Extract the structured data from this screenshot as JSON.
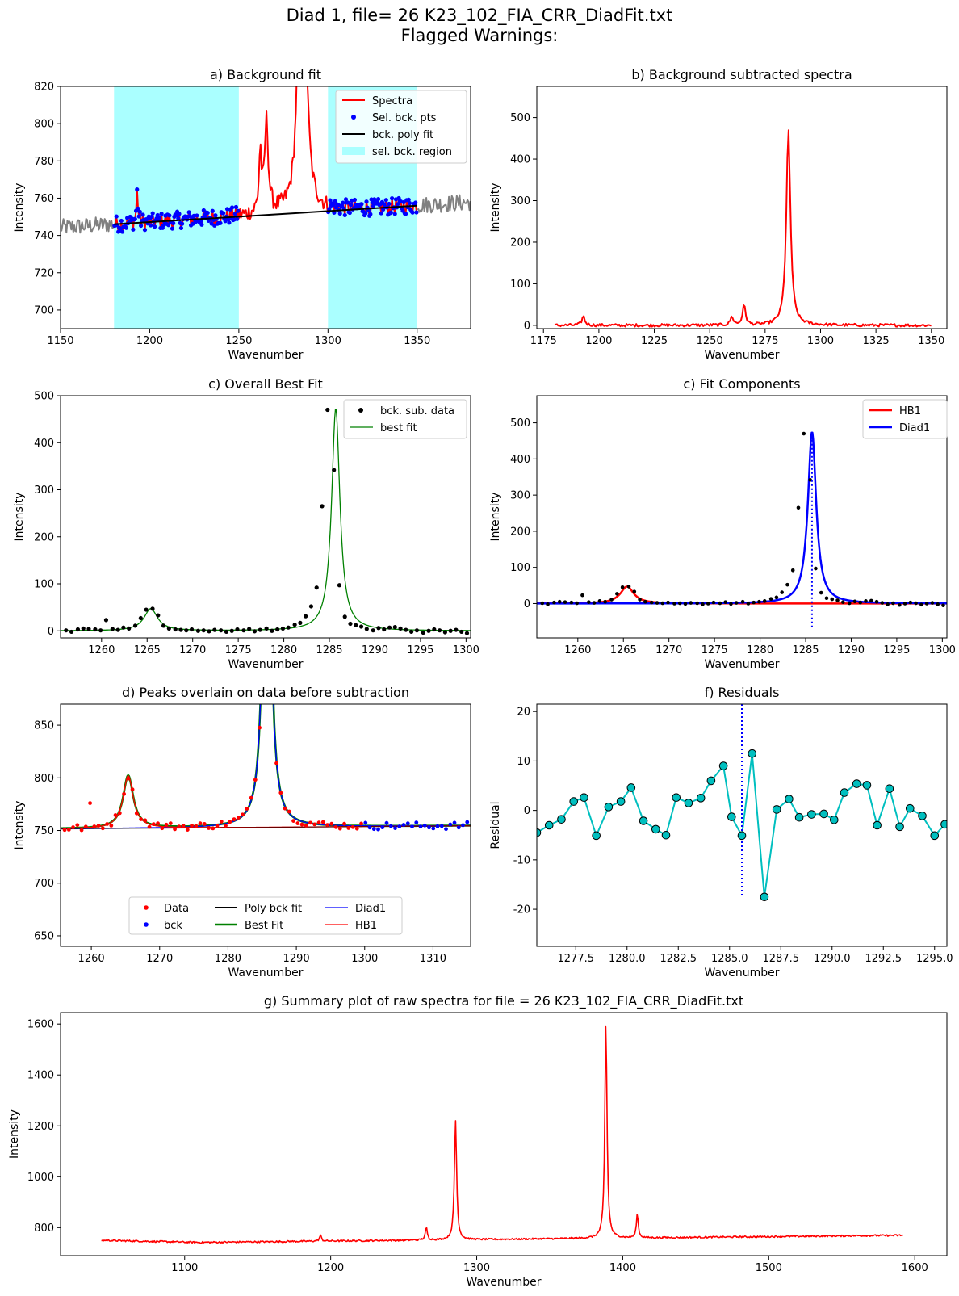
{
  "figure": {
    "suptitle_line1": "Diad 1, file= 26 K23_102_FIA_CRR_DiadFit.txt",
    "suptitle_line2": "Flagged Warnings:"
  },
  "chart_data": [
    {
      "id": "a",
      "type": "line",
      "title": "a) Background fit",
      "xlabel": "Wavenumber",
      "ylabel": "Intensity",
      "xlim": [
        1150,
        1380
      ],
      "ylim": [
        690,
        820
      ],
      "xticks": [
        1150,
        1200,
        1250,
        1300,
        1350
      ],
      "yticks": [
        700,
        720,
        740,
        760,
        780,
        800,
        820
      ],
      "legend": {
        "position": "top-right",
        "entries": [
          "Spectra",
          "Sel. bck. pts",
          "bck. poly fit",
          "sel. bck. region"
        ]
      },
      "colors": {
        "spectra": "#ff0000",
        "sel_pts": "#0000ff",
        "poly_fit": "#000000",
        "region": "#aaffff",
        "outside": "#808080"
      },
      "bck_regions": [
        [
          1180,
          1250
        ],
        [
          1300,
          1350
        ]
      ],
      "poly_fit": {
        "x": [
          1180,
          1350
        ],
        "y": [
          746,
          756
        ]
      },
      "peaks": [
        {
          "x": 1193,
          "height": 769,
          "width": 0.5
        },
        {
          "x": 1262,
          "height": 784,
          "width": 0.8
        },
        {
          "x": 1265.5,
          "height": 801,
          "width": 1.2
        },
        {
          "x": 1285.5,
          "height": 1210,
          "width": 1.3
        }
      ]
    },
    {
      "id": "b",
      "type": "line",
      "title": "b) Background subtracted spectra",
      "xlabel": "Wavenumber",
      "ylabel": "Intensity",
      "xlim": [
        1172,
        1357
      ],
      "ylim": [
        -8,
        575
      ],
      "xticks": [
        1175,
        1200,
        1225,
        1250,
        1275,
        1300,
        1325,
        1350
      ],
      "yticks": [
        0,
        100,
        200,
        300,
        400,
        500
      ],
      "x_range": [
        1180,
        1350
      ],
      "peaks": [
        {
          "x": 1193,
          "height": 22
        },
        {
          "x": 1260,
          "height": 20
        },
        {
          "x": 1265.5,
          "height": 48
        },
        {
          "x": 1285.5,
          "height": 470
        }
      ],
      "color": "#ff0000"
    },
    {
      "id": "c1",
      "type": "scatter",
      "title": "c) Overall Best Fit",
      "xlabel": "Wavenumber",
      "ylabel": "Intensity",
      "xlim": [
        1255.5,
        1300.5
      ],
      "ylim": [
        -15,
        500
      ],
      "xticks": [
        1260,
        1265,
        1270,
        1275,
        1280,
        1285,
        1290,
        1295,
        1300
      ],
      "yticks": [
        0,
        100,
        200,
        300,
        400,
        500
      ],
      "legend": {
        "position": "top-right",
        "entries": [
          "bck. sub. data",
          "best fit"
        ]
      },
      "colors": {
        "data": "#000000",
        "fit": "#008000"
      },
      "data_x": [
        1256.1,
        1256.7,
        1257.4,
        1258.0,
        1258.6,
        1259.3,
        1259.9,
        1260.5,
        1261.2,
        1261.8,
        1262.4,
        1263.0,
        1263.7,
        1264.3,
        1264.9,
        1265.6,
        1266.2,
        1266.8,
        1267.4,
        1268.1,
        1268.7,
        1269.3,
        1269.9,
        1270.6,
        1271.2,
        1271.8,
        1272.4,
        1273.1,
        1273.7,
        1274.3,
        1274.9,
        1275.6,
        1276.2,
        1276.8,
        1277.4,
        1278.1,
        1278.7,
        1279.3,
        1279.9,
        1280.5,
        1281.2,
        1281.8,
        1282.4,
        1283.0,
        1283.6,
        1284.2,
        1284.8,
        1285.5,
        1286.1,
        1286.7,
        1287.3,
        1287.9,
        1288.5,
        1289.1,
        1289.8,
        1290.4,
        1291.0,
        1291.6,
        1292.2,
        1292.8,
        1293.4,
        1294.0,
        1294.6,
        1295.3,
        1295.9,
        1296.5,
        1297.1,
        1297.7,
        1298.3,
        1298.9,
        1299.5,
        1300.1
      ],
      "data_y": [
        1,
        -2,
        3,
        5,
        4,
        3,
        1,
        23,
        4,
        2,
        7,
        5,
        11,
        27,
        45,
        47,
        33,
        11,
        5,
        3,
        2,
        1,
        3,
        0,
        1,
        -1,
        2,
        1,
        -2,
        0,
        3,
        1,
        4,
        -1,
        2,
        5,
        0,
        3,
        5,
        7,
        13,
        17,
        31,
        52,
        92,
        265,
        470,
        342,
        97,
        30,
        15,
        12,
        9,
        4,
        1,
        6,
        3,
        7,
        8,
        5,
        2,
        -2,
        1,
        -4,
        0,
        3,
        1,
        -3,
        0,
        2,
        -2,
        -5
      ],
      "fit_components": [
        {
          "center": 1265.4,
          "amplitude": 47,
          "hwhm": 0.9
        },
        {
          "center": 1285.7,
          "amplitude": 473,
          "hwhm": 0.55
        }
      ]
    },
    {
      "id": "c2",
      "type": "line",
      "title": "c) Fit Components",
      "xlabel": "Wavenumber",
      "ylabel": "Intensity",
      "xlim": [
        1255.5,
        1300.5
      ],
      "ylim": [
        -95,
        575
      ],
      "xticks": [
        1260,
        1265,
        1270,
        1275,
        1280,
        1285,
        1290,
        1295,
        1300
      ],
      "yticks": [
        0,
        100,
        200,
        300,
        400,
        500
      ],
      "legend": {
        "position": "top-right",
        "entries": [
          "HB1",
          "Diad1"
        ]
      },
      "colors": {
        "HB1": "#ff0000",
        "Diad1": "#0000ff",
        "data": "#000000"
      },
      "vline_x": 1285.7,
      "vline_ymax": 475
    },
    {
      "id": "d",
      "type": "scatter",
      "title": "d) Peaks overlain on data before subtraction",
      "xlabel": "Wavenumber",
      "ylabel": "Intensity",
      "xlim": [
        1255.5,
        1315.5
      ],
      "ylim": [
        640,
        870
      ],
      "xticks": [
        1260,
        1270,
        1280,
        1290,
        1300,
        1310
      ],
      "yticks": [
        650,
        700,
        750,
        800,
        850
      ],
      "legend": {
        "position": "bottom-center",
        "entries": [
          "Data",
          "bck",
          "Poly bck fit",
          "Best Fit",
          "Diad1",
          "HB1"
        ]
      },
      "colors": {
        "data": "#ff0000",
        "bck": "#0000ff",
        "poly": "#000000",
        "best": "#008000",
        "diad1": "#0000ff",
        "hb1": "#ff0000"
      },
      "baseline": {
        "x": [
          1255.5,
          1315.5
        ],
        "y": [
          751.5,
          754.5
        ]
      }
    },
    {
      "id": "f",
      "type": "line",
      "title": "f) Residuals",
      "xlabel": "Wavenumber",
      "ylabel": "Residual",
      "xlim": [
        1275.6,
        1295.6
      ],
      "ylim": [
        -27.5,
        21.5
      ],
      "xticks": [
        1277.5,
        1280.0,
        1282.5,
        1285.0,
        1287.5,
        1290.0,
        1292.5,
        1295.0
      ],
      "xtick_labels": [
        "1277.5",
        "1280.0",
        "1282.5",
        "1285.0",
        "1287.5",
        "1290.0",
        "1292.5",
        "1295.0"
      ],
      "yticks": [
        -20,
        -10,
        0,
        10,
        20
      ],
      "color": "#00bfbf",
      "vline_x": 1285.6,
      "vline_range": [
        -17.5,
        21.5
      ],
      "x": [
        1275.6,
        1276.2,
        1276.8,
        1277.4,
        1277.9,
        1278.5,
        1279.1,
        1279.7,
        1280.2,
        1280.8,
        1281.4,
        1281.9,
        1282.4,
        1283.0,
        1283.6,
        1284.1,
        1284.7,
        1285.1,
        1285.6,
        1286.1,
        1286.7,
        1287.3,
        1287.9,
        1288.4,
        1289.0,
        1289.6,
        1290.1,
        1290.6,
        1291.2,
        1291.7,
        1292.2,
        1292.8,
        1293.3,
        1293.8,
        1294.4,
        1295.0,
        1295.5
      ],
      "y": [
        -4.5,
        -3.0,
        -1.8,
        1.8,
        2.6,
        -5.1,
        0.7,
        1.8,
        4.6,
        -2.1,
        -3.8,
        -5.0,
        2.6,
        1.5,
        2.5,
        6.0,
        9.0,
        -1.3,
        -5.1,
        11.5,
        -17.5,
        0.2,
        2.3,
        -1.4,
        -0.8,
        -0.7,
        -1.9,
        3.6,
        5.4,
        5.1,
        -3.0,
        4.4,
        -3.3,
        0.4,
        -1.1,
        -5.1,
        -2.8
      ]
    },
    {
      "id": "g",
      "type": "line",
      "title": "g) Summary plot of raw spectra for file = 26 K23_102_FIA_CRR_DiadFit.txt",
      "xlabel": "Wavenumber",
      "ylabel": "Intensity",
      "xlim": [
        1015,
        1622
      ],
      "ylim": [
        690,
        1645
      ],
      "xticks": [
        1100,
        1200,
        1300,
        1400,
        1500,
        1600
      ],
      "yticks": [
        800,
        1000,
        1200,
        1400,
        1600
      ],
      "x_range": [
        1043,
        1592
      ],
      "color": "#ff0000",
      "peaks": [
        {
          "x": 1193,
          "height": 770
        },
        {
          "x": 1265.5,
          "height": 800
        },
        {
          "x": 1285.5,
          "height": 1222
        },
        {
          "x": 1388.5,
          "height": 1600
        },
        {
          "x": 1410,
          "height": 852
        }
      ]
    }
  ]
}
